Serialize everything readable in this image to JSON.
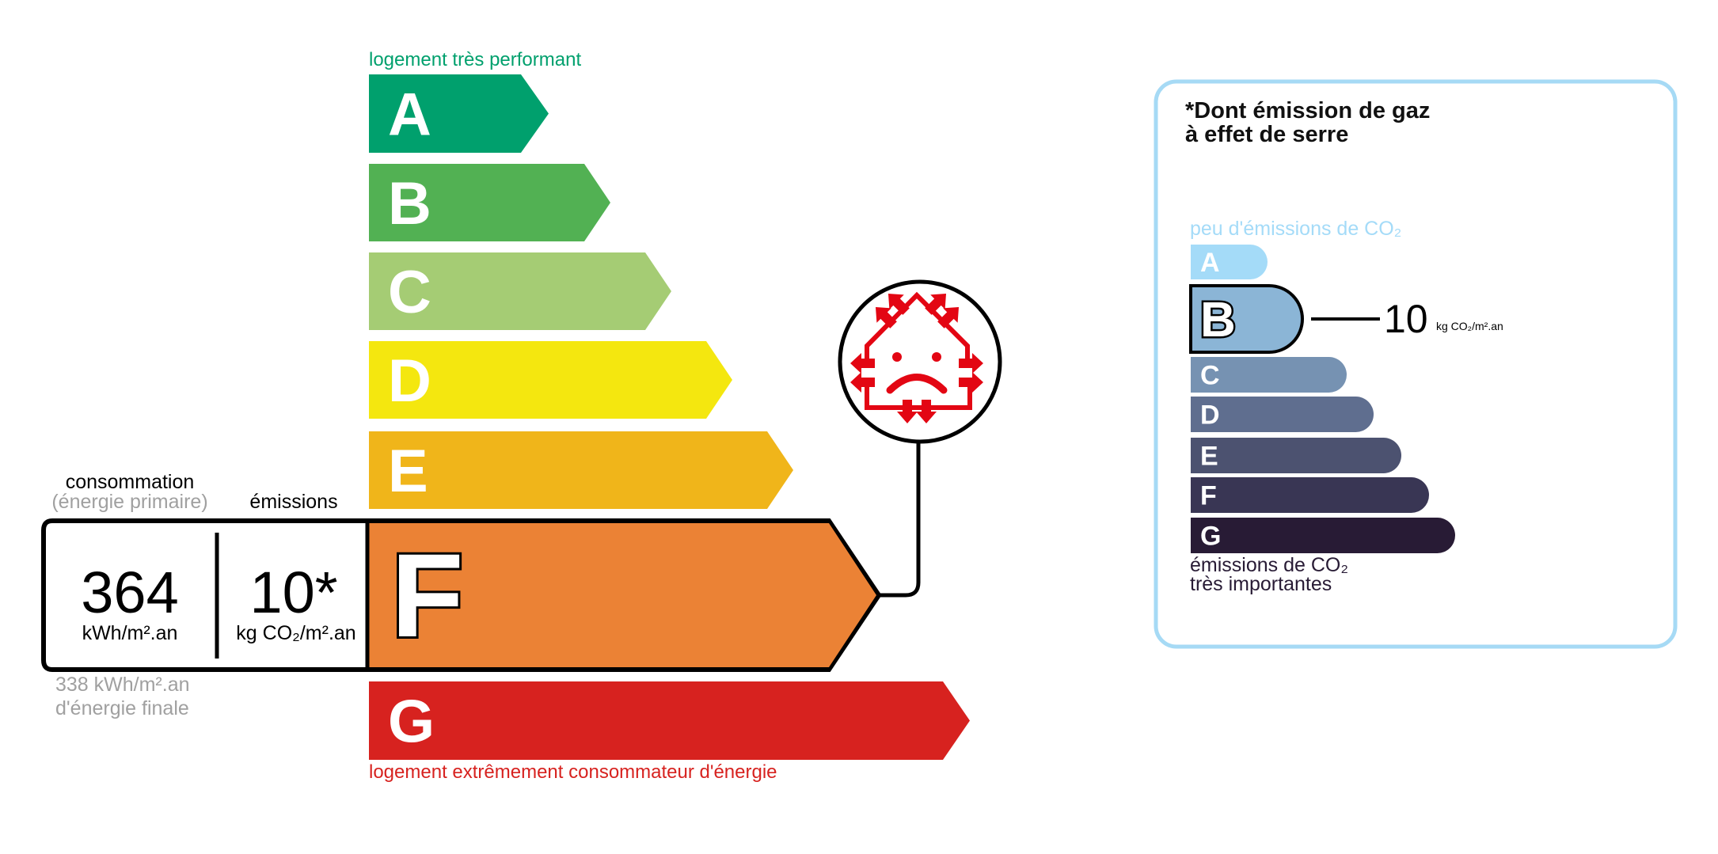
{
  "energy": {
    "top_label": "logement très performant",
    "bottom_label": "logement extrêmement consommateur d'énergie",
    "classes": [
      {
        "letter": "A",
        "color": "#00a06d"
      },
      {
        "letter": "B",
        "color": "#52b153"
      },
      {
        "letter": "C",
        "color": "#a5cc74"
      },
      {
        "letter": "D",
        "color": "#f4e70f"
      },
      {
        "letter": "E",
        "color": "#f0b51a"
      },
      {
        "letter": "F",
        "color": "#eb8235"
      },
      {
        "letter": "G",
        "color": "#d7221f"
      }
    ],
    "current_class": "F",
    "consumption_label": "consommation",
    "consumption_sublabel": "(énergie primaire)",
    "emissions_label": "émissions",
    "consumption_value": "364",
    "consumption_unit": "kWh/m².an",
    "emissions_value": "10*",
    "emissions_unit": "kg CO₂/m².an",
    "final_energy_value": "338 kWh/m².an",
    "final_energy_label": "d'énergie finale",
    "badge_icon": "poorly-insulated-house-sad-face-icon",
    "badge_color": "#e30613"
  },
  "ges": {
    "title_line1": "*Dont émission de gaz",
    "title_line2": "à effet de serre",
    "top_label": "peu d'émissions de CO₂",
    "bottom_label_line1": "émissions de CO₂",
    "bottom_label_line2": "très importantes",
    "classes": [
      {
        "letter": "A",
        "color": "#a4dbf8"
      },
      {
        "letter": "B",
        "color": "#8bb5d6"
      },
      {
        "letter": "C",
        "color": "#7692b2"
      },
      {
        "letter": "D",
        "color": "#5f6e8f"
      },
      {
        "letter": "E",
        "color": "#4c5270"
      },
      {
        "letter": "F",
        "color": "#393654"
      },
      {
        "letter": "G",
        "color": "#281b35"
      }
    ],
    "current_class": "B",
    "value": "10",
    "unit": "kg CO₂/m².an",
    "border_color": "#a6daf5"
  }
}
